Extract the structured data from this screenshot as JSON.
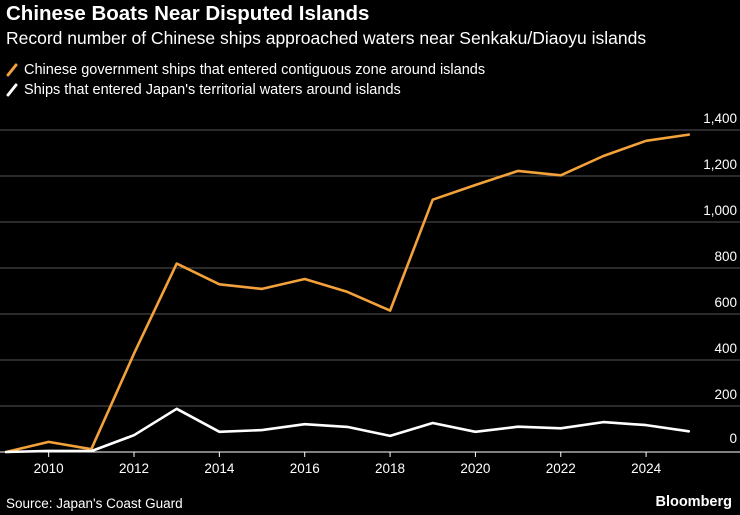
{
  "header": {
    "title": "Chinese Boats Near Disputed Islands",
    "subtitle": "Record number of Chinese ships approached waters near Senkaku/Diaoyu islands"
  },
  "footer": {
    "source": "Source: Japan's Coast Guard",
    "brand": "Bloomberg"
  },
  "colors": {
    "background": "#000000",
    "contiguous": "#f2a13b",
    "territorial": "#ffffff",
    "grid": "#555555"
  },
  "chart_data": {
    "type": "line",
    "title": "Chinese Boats Near Disputed Islands",
    "subtitle": "Record number of Chinese ships approached waters near Senkaku/Diaoyu islands",
    "xlabel": "",
    "ylabel": "",
    "x": [
      2009,
      2010,
      2011,
      2012,
      2013,
      2014,
      2015,
      2016,
      2017,
      2018,
      2019,
      2020,
      2021,
      2022,
      2023,
      2024,
      2025
    ],
    "xticks": [
      "2010",
      "2012",
      "2014",
      "2016",
      "2018",
      "2020",
      "2022",
      "2024"
    ],
    "xlim": [
      2009,
      2026.2
    ],
    "ylim": [
      0,
      1400
    ],
    "yticks": [
      "0",
      "200",
      "400",
      "600",
      "800",
      "1,000",
      "1,200",
      "1,400"
    ],
    "ytick_values": [
      0,
      200,
      400,
      600,
      800,
      1000,
      1200,
      1400
    ],
    "legend_position": "top-left",
    "series": [
      {
        "name": "Chinese government ships that entered contiguous zone around islands",
        "color": "#f2a13b",
        "values": [
          0,
          44,
          12,
          428,
          819,
          729,
          709,
          752,
          696,
          615,
          1097,
          1161,
          1222,
          1203,
          1287,
          1353,
          1380
        ]
      },
      {
        "name": "Ships that entered Japan's territorial waters around islands",
        "color": "#ffffff",
        "values": [
          0,
          5,
          4,
          73,
          188,
          88,
          95,
          121,
          109,
          70,
          126,
          88,
          110,
          103,
          130,
          117,
          90
        ]
      }
    ]
  }
}
